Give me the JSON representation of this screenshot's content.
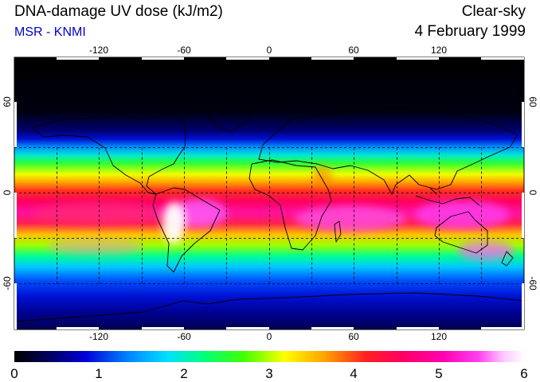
{
  "header": {
    "title": "DNA-damage UV dose (kJ/m2)",
    "source": "MSR - KNMI",
    "sky_condition": "Clear-sky",
    "date": "4 February 1999"
  },
  "map": {
    "projection": "equirectangular",
    "lon_range": [
      -180,
      180
    ],
    "lat_range": [
      -90,
      90
    ],
    "grid_spacing_lon": 30,
    "grid_spacing_lat": 30,
    "lon_tick_labels": [
      "-120",
      "-60",
      "0",
      "60",
      "120"
    ],
    "lat_tick_labels": [
      "60",
      "0",
      "-60"
    ],
    "lat_tick_labels_right": [
      "60",
      "0",
      "-60"
    ]
  },
  "colorbar": {
    "min": 0,
    "max": 6,
    "tick_labels": [
      "0",
      "1",
      "2",
      "3",
      "4",
      "5",
      "6"
    ],
    "color_stops": [
      "#000000",
      "#000060",
      "#0000d8",
      "#0080ff",
      "#00e0ff",
      "#00ff80",
      "#40ff00",
      "#ffff00",
      "#ffa000",
      "#ff2020",
      "#ff0060",
      "#ff00b0",
      "#ff40f0",
      "#ffc8ff",
      "#ffffff"
    ]
  }
}
